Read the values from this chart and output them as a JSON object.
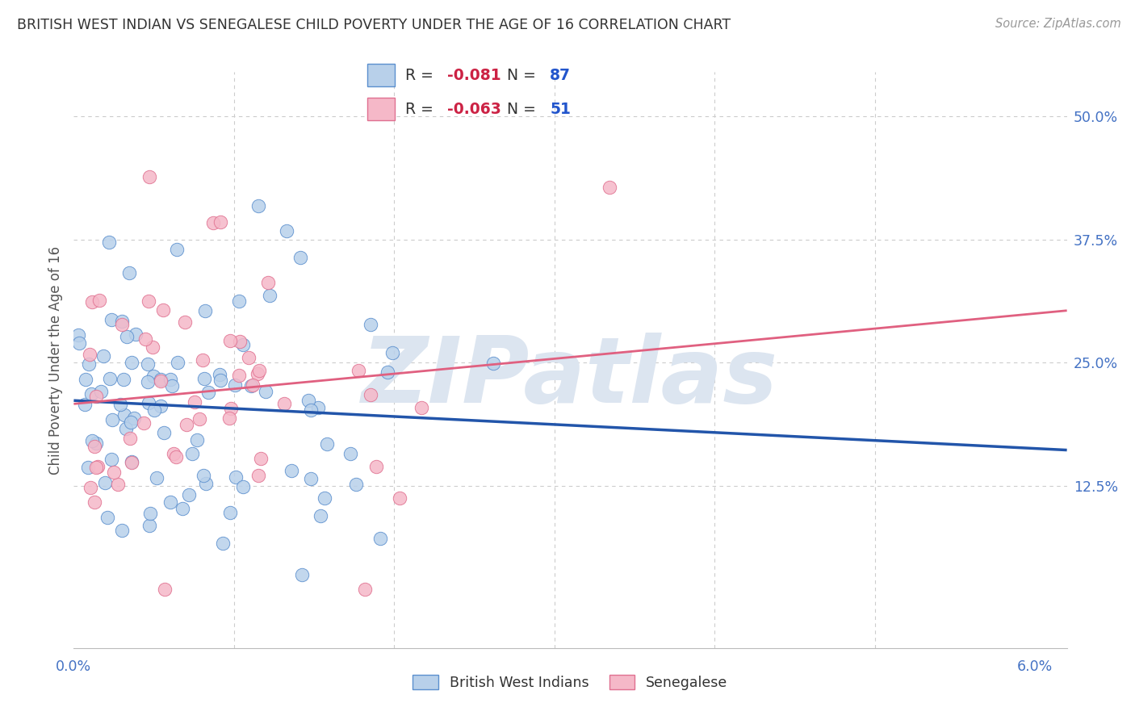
{
  "title": "BRITISH WEST INDIAN VS SENEGALESE CHILD POVERTY UNDER THE AGE OF 16 CORRELATION CHART",
  "source": "Source: ZipAtlas.com",
  "ylabel": "Child Poverty Under the Age of 16",
  "xlim": [
    0.0,
    0.062
  ],
  "ylim": [
    -0.04,
    0.545
  ],
  "yticks": [
    0.0,
    0.125,
    0.25,
    0.375,
    0.5
  ],
  "ytick_labels": [
    "",
    "12.5%",
    "25.0%",
    "37.5%",
    "50.0%"
  ],
  "blue_face": "#b8d0ea",
  "blue_edge": "#5b8fce",
  "pink_face": "#f5b8c8",
  "pink_edge": "#e07090",
  "blue_line_color": "#2255aa",
  "pink_line_color": "#e06080",
  "title_color": "#333333",
  "axis_color": "#4472c4",
  "grid_color": "#cccccc",
  "bg_color": "#ffffff",
  "watermark": "ZIPatlas",
  "watermark_color": "#dce5f0",
  "series1_label": "British West Indians",
  "series2_label": "Senegalese",
  "r_blue": -0.081,
  "r_pink": -0.063,
  "n_blue": 87,
  "n_pink": 51,
  "legend_r1_r": "-0.081",
  "legend_r1_n": "87",
  "legend_r2_r": "-0.063",
  "legend_r2_n": "51"
}
